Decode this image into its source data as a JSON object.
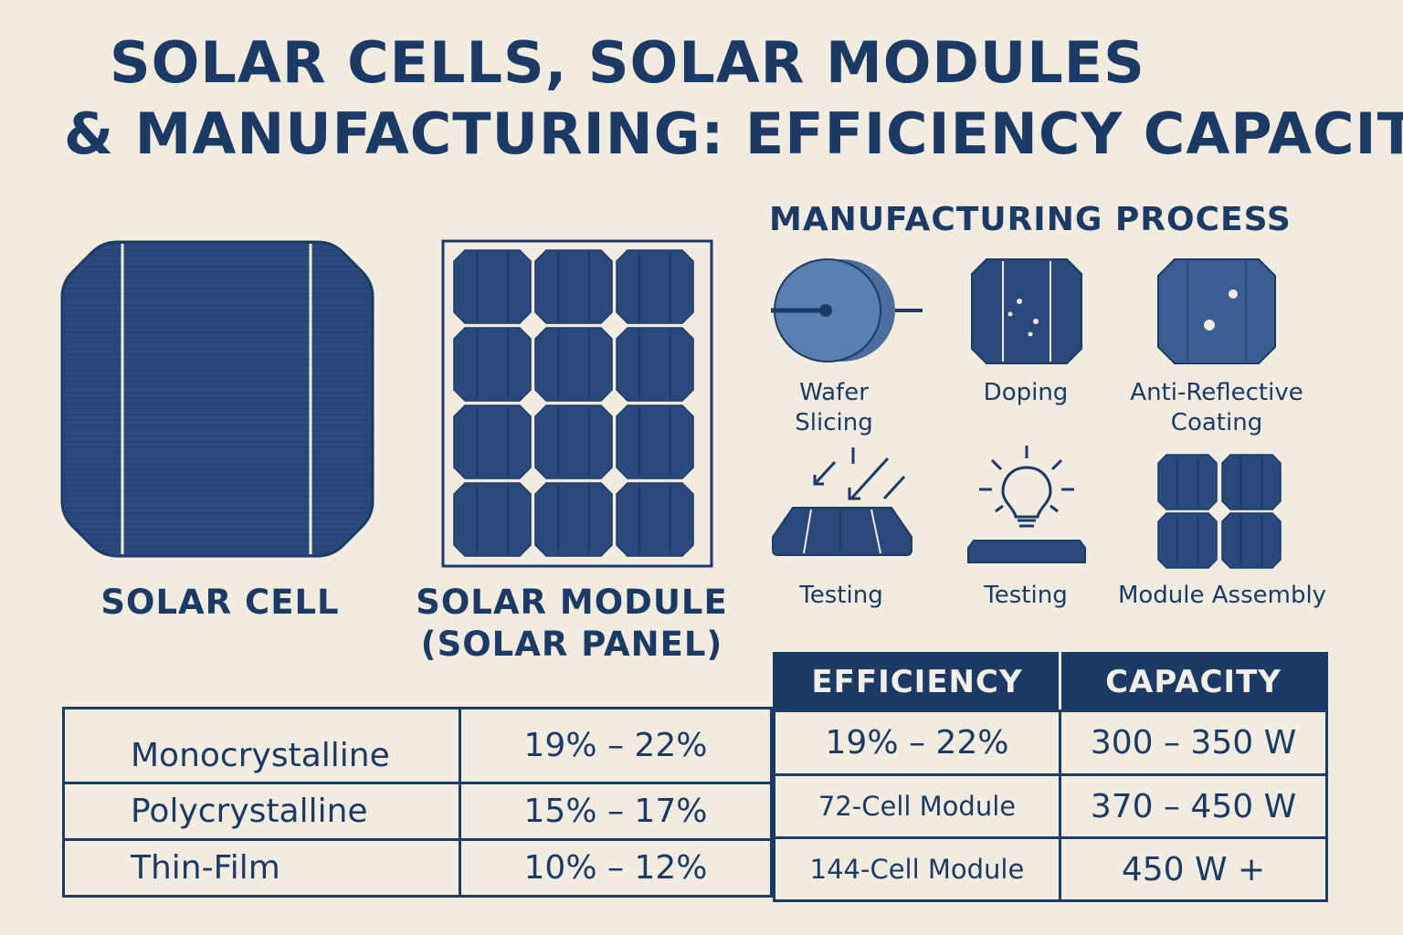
{
  "title": {
    "line1": "SOLAR CELLS, SOLAR MODULES",
    "line2": "& MANUFACTURING: EFFICIENCY CAPACITY"
  },
  "cell_caption": "SOLAR CELL",
  "module_caption": {
    "line1": "SOLAR MODULE",
    "line2": "(SOLAR PANEL)"
  },
  "process": {
    "title": "MANUFACTURING PROCESS",
    "steps": [
      {
        "label_line1": "Wafer",
        "label_line2": "Slicing",
        "icon": "wafer-slicing-icon"
      },
      {
        "label_line1": "Doping",
        "label_line2": "",
        "icon": "doping-icon"
      },
      {
        "label_line1": "Anti-Reflective",
        "label_line2": "Coating",
        "icon": "coating-icon"
      },
      {
        "label_line1": "Testing",
        "label_line2": "",
        "icon": "light-testing-icon"
      },
      {
        "label_line1": "Testing",
        "label_line2": "",
        "icon": "lightbulb-icon"
      },
      {
        "label_line1": "Module Assembly",
        "label_line2": "",
        "icon": "module-assembly-icon"
      }
    ]
  },
  "efficiency_table": {
    "rows": [
      {
        "type": "Monocrystalline",
        "efficiency": "19% – 22%"
      },
      {
        "type": "Polycrystalline",
        "efficiency": "15% – 17%"
      },
      {
        "type": "Thin-Film",
        "efficiency": "10% – 12%"
      }
    ]
  },
  "capacity_table": {
    "headers": [
      "EFFICIENCY",
      "CAPACITY"
    ],
    "rows": [
      {
        "left": "19% – 22%",
        "right": "300 – 350 W"
      },
      {
        "left": "72-Cell Module",
        "right": "370 – 450 W"
      },
      {
        "left": "144-Cell Module",
        "right": "450 W +"
      }
    ]
  },
  "colors": {
    "navy": "#1c3a66",
    "cell_blue": "#2a4a7c",
    "background": "#f1ebe0"
  }
}
